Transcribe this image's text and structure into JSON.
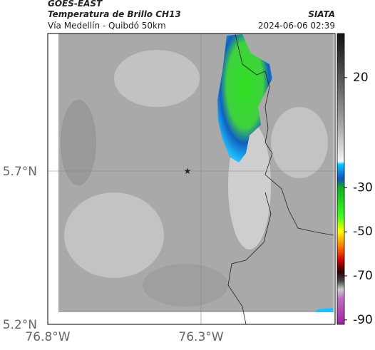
{
  "header": {
    "source": "GOES-EAST",
    "title": "Temperatura de Brillo CH13",
    "brand": "SIATA",
    "route": "Vía Medellín - Quibdó 50km",
    "timestamp": "2024-06-06 02:39"
  },
  "map": {
    "x_labels": [
      "76.8°W",
      "76.3°W"
    ],
    "y_labels": [
      "5.7°N",
      "5.2°N"
    ]
  },
  "colorbar": {
    "lim": [
      40,
      -92
    ],
    "ticks": [
      20,
      -30,
      -50,
      -70,
      -90
    ]
  }
}
